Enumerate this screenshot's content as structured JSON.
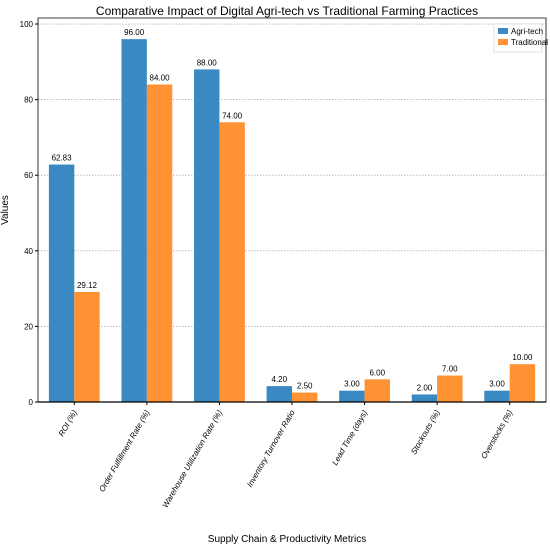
{
  "chart_data": {
    "type": "bar",
    "title": "Comparative Impact of Digital Agri-tech vs Traditional Farming Practices",
    "x_label": "Supply Chain & Productivity Metrics",
    "y_label": "Values",
    "categories": [
      "ROI (%)",
      "Order Fulfillment Rate (%)",
      "Warehouse Utilization Rate (%)",
      "Inventory Turnover Ratio",
      "Lead Time (days)",
      "Stockouts (%)",
      "Overstocks (%)"
    ],
    "series": [
      {
        "name": "Agri-tech",
        "color": "#3b89c2",
        "values": [
          62.83,
          96,
          88,
          4.2,
          3,
          2,
          3
        ],
        "value_labels": [
          "62.83",
          "96.00",
          "88.00",
          "4.20",
          "3.00",
          "2.00",
          "3.00"
        ]
      },
      {
        "name": "Traditional",
        "color": "#ff9232",
        "values": [
          29.12,
          84,
          74,
          2.5,
          6,
          7,
          10
        ],
        "value_labels": [
          "29.12",
          "84.00",
          "74.00",
          "2.50",
          "6.00",
          "7.00",
          "10.00"
        ]
      }
    ],
    "ylim": [
      0,
      101.6
    ],
    "yticks": [
      0,
      20,
      40,
      60,
      80,
      100
    ],
    "grid": true,
    "legend": "upper right"
  }
}
